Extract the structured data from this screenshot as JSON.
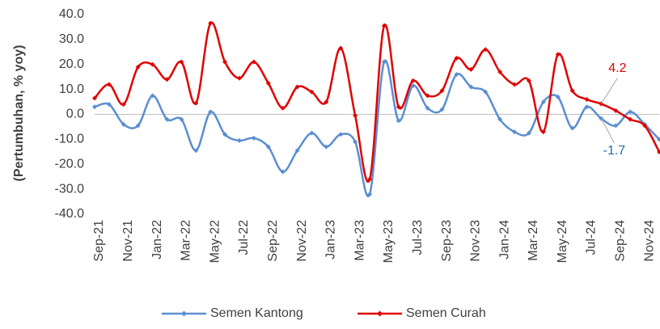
{
  "chart_data": {
    "type": "line",
    "y_axis_label": "(Pertumbuhan, % yoy)",
    "categories": [
      "Sep-21",
      null,
      "Nov-21",
      null,
      "Jan-22",
      null,
      "Mar-22",
      null,
      "May-22",
      null,
      "Jul-22",
      null,
      "Sep-22",
      null,
      "Nov-22",
      null,
      "Jan-23",
      null,
      "Mar-23",
      null,
      "May-23",
      null,
      "Jul-23",
      null,
      "Sep-23",
      null,
      "Nov-23",
      null,
      "Jan-24",
      null,
      "Mar-24",
      null,
      "May-24",
      null,
      "Jul-24",
      null,
      "Sep-24",
      null,
      "Nov-24",
      null
    ],
    "ylim": [
      -40,
      40
    ],
    "yticks": [
      {
        "value": -40,
        "label": "-40.0"
      },
      {
        "value": -30,
        "label": "-30.0"
      },
      {
        "value": -20,
        "label": "-20.0"
      },
      {
        "value": -10,
        "label": "-10.0"
      },
      {
        "value": 0,
        "label": "0.0"
      },
      {
        "value": 10,
        "label": "10.0"
      },
      {
        "value": 20,
        "label": "20.0"
      },
      {
        "value": 30,
        "label": "30.0"
      },
      {
        "value": 40,
        "label": "40.0"
      }
    ],
    "legend": "bottom",
    "series": [
      {
        "name": "Semen Kantong",
        "color": "#5b8fd0",
        "label_color": "#1f6fa8",
        "values": [
          3,
          4,
          -4,
          -4.5,
          7.5,
          -2,
          -2,
          -14.5,
          1,
          -8,
          -10.5,
          -9.5,
          -13,
          -23,
          -14.5,
          -7.5,
          -13,
          -8,
          -11,
          -32,
          21,
          -2.5,
          11.5,
          2.5,
          2,
          16,
          11,
          9,
          -2,
          -7,
          -7.5,
          5,
          7,
          -5.5,
          3,
          -1.7,
          -4.5,
          1,
          -4,
          -10
        ],
        "value_labels": [
          null,
          null,
          null,
          null,
          null,
          null,
          null,
          null,
          null,
          null,
          null,
          null,
          null,
          null,
          null,
          null,
          null,
          null,
          null,
          null,
          null,
          null,
          null,
          null,
          null,
          null,
          null,
          null,
          null,
          null,
          null,
          null,
          null,
          null,
          null,
          "-1.7",
          null,
          null,
          null,
          null
        ]
      },
      {
        "name": "Semen Curah",
        "color": "#e00000",
        "label_color": "#e00000",
        "values": [
          6.5,
          12,
          4,
          19,
          20,
          14,
          21,
          4.5,
          36.5,
          21,
          14.5,
          21,
          12.5,
          2.5,
          11,
          9,
          5,
          26.5,
          -0.5,
          -26,
          35.5,
          3,
          13.5,
          7.5,
          9.5,
          22.5,
          18,
          26,
          17,
          12,
          13.5,
          -7,
          24,
          9.5,
          6,
          4.2,
          1.5,
          -2,
          -4.5,
          -15
        ],
        "value_labels": [
          null,
          null,
          null,
          null,
          null,
          null,
          null,
          null,
          null,
          null,
          null,
          null,
          null,
          null,
          null,
          null,
          null,
          null,
          null,
          null,
          null,
          null,
          null,
          null,
          null,
          null,
          null,
          null,
          null,
          null,
          null,
          null,
          null,
          null,
          null,
          "4.2",
          null,
          null,
          null,
          null
        ]
      }
    ]
  }
}
